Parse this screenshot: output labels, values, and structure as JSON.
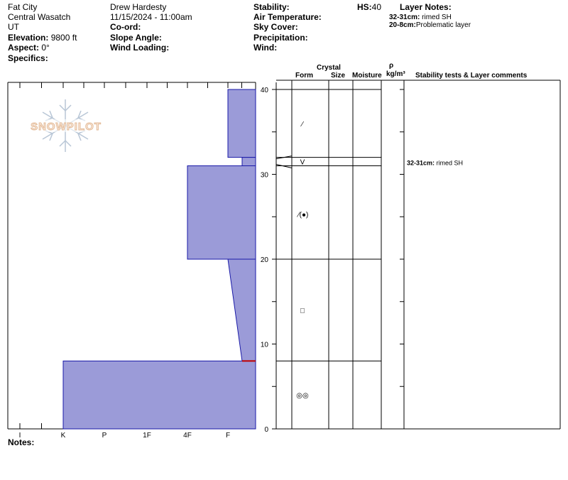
{
  "header": {
    "location": "Fat City",
    "range": "Central Wasatch",
    "state": "UT",
    "elevation_label": "Elevation:",
    "elevation_value": "9800 ft",
    "aspect_label": "Aspect:",
    "aspect_value": "0°",
    "specifics_label": "Specifics:",
    "observer": "Drew Hardesty",
    "datetime": "11/15/2024 - 11:00am",
    "coord_label": "Co-ord:",
    "slope_label": "Slope Angle:",
    "wind_loading_label": "Wind Loading:",
    "stability_label": "Stability:",
    "air_temp_label": "Air Temperature:",
    "sky_cover_label": "Sky Cover:",
    "precip_label": "Precipitation:",
    "wind_label": "Wind:",
    "hs_label": "HS:",
    "hs_value": "40",
    "layer_notes_title": "Layer Notes:",
    "layer_notes": [
      {
        "range": "32-31cm:",
        "text": "rimed SH"
      },
      {
        "range": "20-8cm:",
        "text": "Problematic layer"
      }
    ]
  },
  "table_headers": {
    "crystal": "Crystal",
    "form": "Form",
    "size": "Size",
    "moisture": "Moisture",
    "rho": "ρ",
    "density": "kg/m³",
    "comments": "Stability tests & Layer comments"
  },
  "logo_text": "SNOWPILOT",
  "notes_label": "Notes:",
  "colors": {
    "layer_fill": "#9b9bd8",
    "layer_stroke": "#1a1aa8",
    "marker": "#c00000"
  },
  "chart_data": {
    "type": "snow-profile",
    "ylim": [
      0,
      40
    ],
    "y_ticks": [
      0,
      10,
      20,
      30,
      40
    ],
    "hardness_scale": [
      "I",
      "K",
      "P",
      "1F",
      "4F",
      "F"
    ],
    "layers": [
      {
        "top": 40,
        "bottom": 32,
        "hardness": "F+"
      },
      {
        "top": 32,
        "bottom": 31,
        "hardness": "F-"
      },
      {
        "top": 31,
        "bottom": 20,
        "hardness": "4F"
      },
      {
        "top": 20,
        "bottom": 8,
        "hardness_top": "F",
        "hardness_bottom": "F-"
      },
      {
        "top": 8,
        "bottom": 0,
        "hardness": "K"
      }
    ],
    "grain_forms": [
      {
        "depth": 36,
        "symbol": "⁄"
      },
      {
        "depth": 31.5,
        "symbol": "V"
      },
      {
        "depth": 25.3,
        "symbol": "⁄(●)"
      },
      {
        "depth": 14,
        "symbol": "□"
      },
      {
        "depth": 4,
        "symbol": "◎◎"
      }
    ],
    "layer_comments": [
      {
        "depth": 31,
        "range": "32-31cm:",
        "text": "rimed SH"
      }
    ],
    "marker_depth": 8
  }
}
